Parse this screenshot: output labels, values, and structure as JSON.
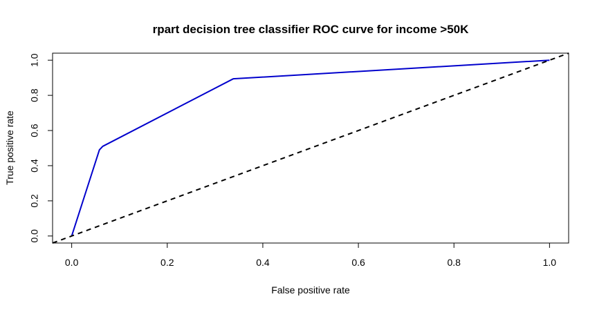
{
  "chart_data": {
    "type": "line",
    "title": "rpart decision tree classifier ROC curve for income >50K",
    "xlabel": "False positive rate",
    "ylabel": "True positive rate",
    "xlim": [
      -0.04,
      1.04
    ],
    "ylim": [
      -0.04,
      1.04
    ],
    "xticks": [
      0.0,
      0.2,
      0.4,
      0.6,
      0.8,
      1.0
    ],
    "yticks": [
      0.0,
      0.2,
      0.4,
      0.6,
      0.8,
      1.0
    ],
    "xtick_labels": [
      "0.0",
      "0.2",
      "0.4",
      "0.6",
      "0.8",
      "1.0"
    ],
    "ytick_labels": [
      "0.0",
      "0.2",
      "0.4",
      "0.6",
      "0.8",
      "1.0"
    ],
    "grid": false,
    "series": [
      {
        "color": "#0000cc",
        "style": "solid",
        "x": [
          0.0,
          0.058,
          0.065,
          0.338,
          1.0
        ],
        "y": [
          0.0,
          0.49,
          0.51,
          0.894,
          1.0
        ]
      },
      {
        "color": "#000000",
        "style": "dashed",
        "x": [
          -0.04,
          1.04
        ],
        "y": [
          -0.04,
          1.04
        ]
      }
    ]
  }
}
